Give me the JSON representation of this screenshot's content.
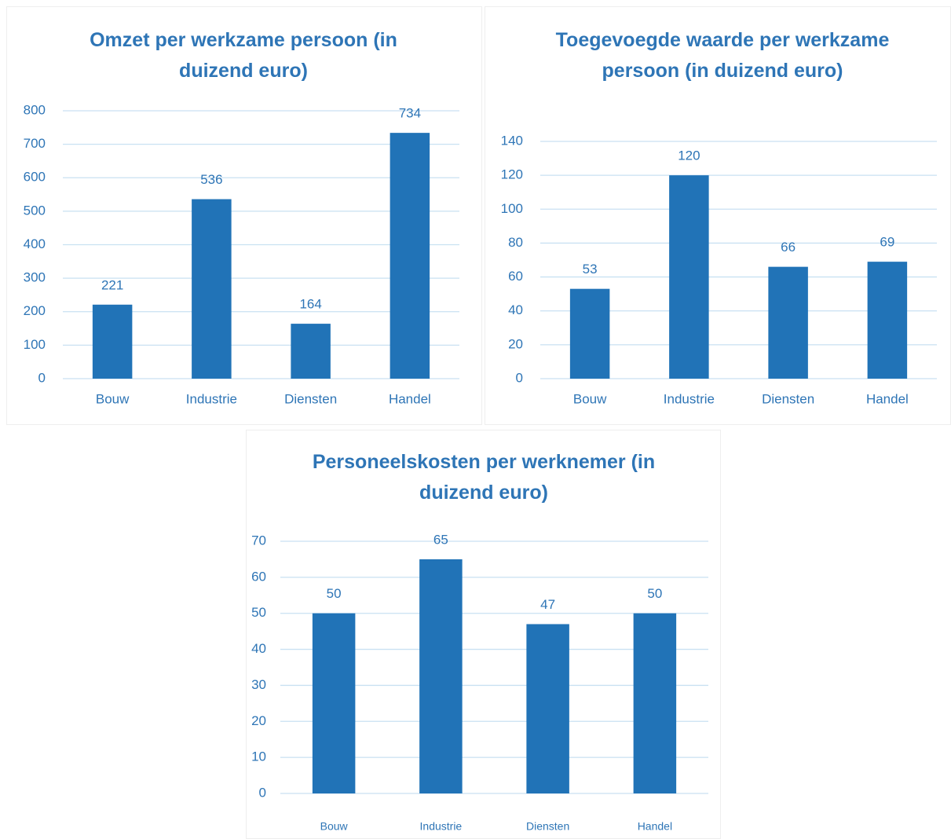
{
  "chart_data": [
    {
      "type": "bar",
      "title": "Omzet per werkzame persoon (in duizend euro)",
      "categories": [
        "Bouw",
        "Industrie",
        "Diensten",
        "Handel"
      ],
      "values": [
        221,
        536,
        164,
        734
      ],
      "color": "#2173b7",
      "ylim": [
        0,
        800
      ],
      "yticks": [
        0,
        100,
        200,
        300,
        400,
        500,
        600,
        700,
        800
      ],
      "grid": true
    },
    {
      "type": "bar",
      "title": "Toegevoegde waarde per werkzame persoon (in duizend euro)",
      "categories": [
        "Bouw",
        "Industrie",
        "Diensten",
        "Handel"
      ],
      "values": [
        53,
        120,
        66,
        69
      ],
      "color": "#2173b7",
      "ylim": [
        0,
        140
      ],
      "yticks": [
        0,
        20,
        40,
        60,
        80,
        100,
        120,
        140
      ],
      "grid": true
    },
    {
      "type": "bar",
      "title": "Personeelskosten per werknemer (in duizend euro)",
      "categories": [
        "Bouw",
        "Industrie",
        "Diensten",
        "Handel"
      ],
      "values": [
        50,
        65,
        47,
        50
      ],
      "color": "#2173b7",
      "ylim": [
        0,
        70
      ],
      "yticks": [
        0,
        10,
        20,
        30,
        40,
        50,
        60,
        70
      ],
      "grid": true
    }
  ]
}
